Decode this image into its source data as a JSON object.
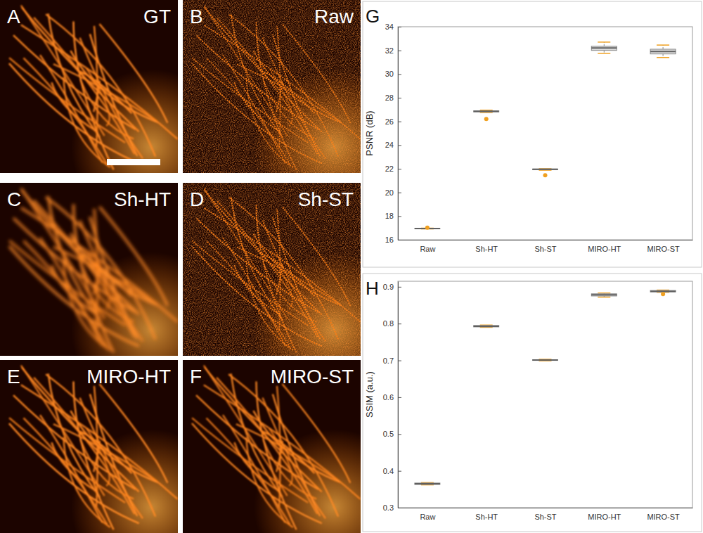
{
  "images": [
    {
      "letter": "A",
      "label": "GT"
    },
    {
      "letter": "B",
      "label": "Raw"
    },
    {
      "letter": "C",
      "label": "Sh-HT"
    },
    {
      "letter": "D",
      "label": "Sh-ST"
    },
    {
      "letter": "E",
      "label": "MIRO-HT"
    },
    {
      "letter": "F",
      "label": "MIRO-ST"
    }
  ],
  "chart_data": [
    {
      "type": "box",
      "letter": "G",
      "y_label": "PSNR (dB)",
      "categories": [
        "Raw",
        "Sh-HT",
        "Sh-ST",
        "MIRO-HT",
        "MIRO-ST"
      ],
      "boxes": [
        {
          "min": 16.92,
          "q1": 16.93,
          "median": 16.95,
          "q3": 16.97,
          "max": 16.98,
          "outliers": [
            17.02
          ]
        },
        {
          "min": 26.75,
          "q1": 26.8,
          "median": 26.85,
          "q3": 26.9,
          "max": 26.95,
          "outliers": [
            26.2
          ]
        },
        {
          "min": 21.88,
          "q1": 21.92,
          "median": 21.95,
          "q3": 21.98,
          "max": 22.0,
          "outliers": [
            21.45
          ]
        },
        {
          "min": 31.75,
          "q1": 32.0,
          "median": 32.2,
          "q3": 32.35,
          "max": 32.7
        },
        {
          "min": 31.4,
          "q1": 31.7,
          "median": 31.9,
          "q3": 32.1,
          "max": 32.45
        }
      ],
      "ylim": [
        16,
        34
      ],
      "yticks": [
        16,
        18,
        20,
        22,
        24,
        26,
        28,
        30,
        32,
        34
      ]
    },
    {
      "type": "box",
      "letter": "H",
      "y_label": "SSIM (a.u.)",
      "categories": [
        "Raw",
        "Sh-HT",
        "Sh-ST",
        "MIRO-HT",
        "MIRO-ST"
      ],
      "boxes": [
        {
          "min": 0.362,
          "q1": 0.363,
          "median": 0.365,
          "q3": 0.367,
          "max": 0.368
        },
        {
          "min": 0.79,
          "q1": 0.791,
          "median": 0.793,
          "q3": 0.795,
          "max": 0.796
        },
        {
          "min": 0.699,
          "q1": 0.7,
          "median": 0.701,
          "q3": 0.702,
          "max": 0.703
        },
        {
          "min": 0.872,
          "q1": 0.875,
          "median": 0.878,
          "q3": 0.881,
          "max": 0.883
        },
        {
          "min": 0.885,
          "q1": 0.886,
          "median": 0.888,
          "q3": 0.89,
          "max": 0.891,
          "outliers": [
            0.88
          ]
        }
      ],
      "ylim": [
        0.3,
        0.915
      ],
      "yticks": [
        0.3,
        0.4,
        0.5,
        0.6,
        0.7,
        0.8,
        0.9
      ]
    }
  ]
}
